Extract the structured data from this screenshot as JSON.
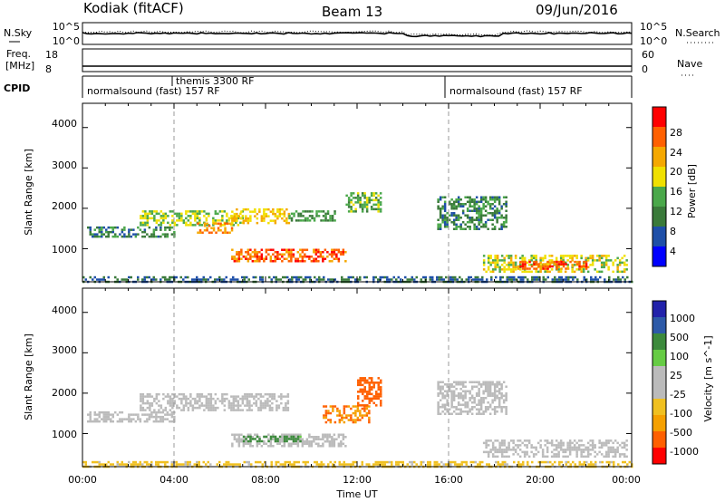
{
  "header": {
    "station": "Kodiak (fitACF)",
    "beam": "Beam 13",
    "date": "09/Jun/2016"
  },
  "strip_panels": {
    "sky": {
      "left_label": "N.Sky",
      "left_ticks": [
        "10^5",
        "10^0"
      ],
      "right_label": "N.Search",
      "right_ticks": [
        "10^5",
        "10^0"
      ]
    },
    "freq": {
      "left_label_line1": "Freq.",
      "left_label_line2": "[MHz]",
      "left_ticks": [
        "18",
        "8"
      ],
      "right_label": "Nave",
      "right_ticks": [
        "60",
        "0"
      ]
    },
    "cpid": {
      "label": "CPID",
      "segments": [
        {
          "text": "normalsound (fast) 157 RF",
          "start_hour": 0,
          "end_hour": 16
        },
        {
          "text": "themis 3300 RF",
          "start_hour": 4
        },
        {
          "text": "normalsound (fast) 157 RF",
          "start_hour": 16,
          "end_hour": 24
        }
      ]
    }
  },
  "colors": {
    "power_scale": [
      "#0000ff",
      "#1e4fa8",
      "#3a7a3a",
      "#4aa84a",
      "#f0e000",
      "#f5a800",
      "#ff6000",
      "#ff0000"
    ],
    "velocity_scale": [
      "#2222aa",
      "#2d5aa8",
      "#3c8a3c",
      "#66cc44",
      "#bbbbbb",
      "#bbbbbb",
      "#f0c020",
      "#f5a000",
      "#ff6000",
      "#ff0000"
    ]
  },
  "chart_data": [
    {
      "type": "heatmap",
      "name": "power",
      "xlabel": "",
      "ylabel": "Slant Range [km]",
      "x_range_hours": [
        0,
        24
      ],
      "y_range_km": [
        180,
        4600
      ],
      "y_ticks": [
        "1000",
        "2000",
        "3000",
        "4000"
      ],
      "colorbar": {
        "label": "Power [dB]",
        "range": [
          0,
          32
        ],
        "ticks": [
          "4",
          "8",
          "12",
          "16",
          "20",
          "24",
          "28"
        ]
      },
      "echo_regions": [
        {
          "hours": [
            0.2,
            4.0
          ],
          "range_km": [
            1300,
            1550
          ],
          "level_db": 10
        },
        {
          "hours": [
            2.5,
            7.0
          ],
          "range_km": [
            1600,
            1950
          ],
          "level_db": 16
        },
        {
          "hours": [
            5.0,
            6.5
          ],
          "range_km": [
            1400,
            1650
          ],
          "level_db": 24
        },
        {
          "hours": [
            6.5,
            9.0
          ],
          "range_km": [
            1650,
            2000
          ],
          "level_db": 20
        },
        {
          "hours": [
            6.5,
            11.5
          ],
          "range_km": [
            700,
            1000
          ],
          "level_db": 26
        },
        {
          "hours": [
            9.0,
            11.0
          ],
          "range_km": [
            1700,
            1950
          ],
          "level_db": 12
        },
        {
          "hours": [
            11.5,
            13.0
          ],
          "range_km": [
            1900,
            2400
          ],
          "level_db": 14
        },
        {
          "hours": [
            15.5,
            18.5
          ],
          "range_km": [
            1500,
            2300
          ],
          "level_db": 10
        },
        {
          "hours": [
            17.5,
            23.8
          ],
          "range_km": [
            450,
            850
          ],
          "level_db": 18
        },
        {
          "hours": [
            19.0,
            22.0
          ],
          "range_km": [
            500,
            700
          ],
          "level_db": 26
        },
        {
          "hours": [
            0.0,
            24.0
          ],
          "range_km": [
            180,
            320
          ],
          "level_db": 8
        }
      ]
    },
    {
      "type": "heatmap",
      "name": "velocity",
      "xlabel": "Time UT",
      "ylabel": "Slant Range [km]",
      "x_range_hours": [
        0,
        24
      ],
      "x_ticks": [
        "00:00",
        "04:00",
        "08:00",
        "12:00",
        "16:00",
        "20:00",
        "00:00"
      ],
      "y_range_km": [
        180,
        4600
      ],
      "y_ticks": [
        "1000",
        "2000",
        "3000",
        "4000"
      ],
      "colorbar": {
        "label": "Velocity [m s^-1]",
        "ticks": [
          "1000",
          "500",
          "100",
          "25",
          "-25",
          "-100",
          "-500",
          "-1000"
        ]
      },
      "echo_regions": [
        {
          "hours": [
            0.2,
            4.0
          ],
          "range_km": [
            1300,
            1550
          ],
          "velocity": 0
        },
        {
          "hours": [
            2.5,
            9.0
          ],
          "range_km": [
            1600,
            2000
          ],
          "velocity": 0
        },
        {
          "hours": [
            6.5,
            11.5
          ],
          "range_km": [
            700,
            1000
          ],
          "velocity": 0
        },
        {
          "hours": [
            7.0,
            9.5
          ],
          "range_km": [
            800,
            950
          ],
          "velocity": 150
        },
        {
          "hours": [
            10.5,
            12.5
          ],
          "range_km": [
            1300,
            1700
          ],
          "velocity": -300
        },
        {
          "hours": [
            12.0,
            13.0
          ],
          "range_km": [
            1700,
            2400
          ],
          "velocity": -600
        },
        {
          "hours": [
            15.5,
            18.5
          ],
          "range_km": [
            1500,
            2300
          ],
          "velocity": 0
        },
        {
          "hours": [
            17.5,
            23.8
          ],
          "range_km": [
            450,
            850
          ],
          "velocity": 0
        },
        {
          "hours": [
            0.0,
            24.0
          ],
          "range_km": [
            180,
            320
          ],
          "velocity": -40
        }
      ]
    }
  ]
}
